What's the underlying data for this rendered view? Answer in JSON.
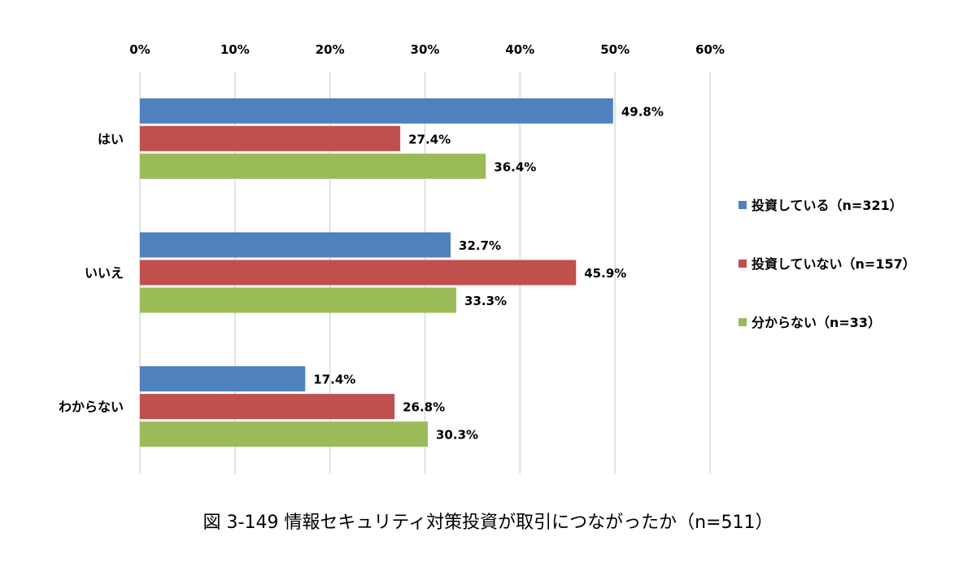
{
  "chart_data": {
    "type": "bar",
    "orientation": "horizontal",
    "categories": [
      "はい",
      "いいえ",
      "わからない"
    ],
    "series": [
      {
        "name": "投資している（n=321）",
        "values": [
          49.8,
          32.7,
          17.4
        ],
        "color": "#4F81BD"
      },
      {
        "name": "投資していない（n=157）",
        "values": [
          27.4,
          45.9,
          26.8
        ],
        "color": "#C0504D"
      },
      {
        "name": "分からない（n=33）",
        "values": [
          36.4,
          33.3,
          30.3
        ],
        "color": "#9BBB59"
      }
    ],
    "data_labels": [
      [
        "49.8%",
        "32.7%",
        "17.4%"
      ],
      [
        "27.4%",
        "45.9%",
        "26.8%"
      ],
      [
        "36.4%",
        "33.3%",
        "30.3%"
      ]
    ],
    "x_ticks": [
      "0%",
      "10%",
      "20%",
      "30%",
      "40%",
      "50%",
      "60%"
    ],
    "xlim": [
      0,
      60
    ],
    "axis_position": "top",
    "grid": true,
    "legend_position": "right",
    "caption": "図 3-149 情報セキュリティ対策投資が取引につながったか（n=511）"
  }
}
